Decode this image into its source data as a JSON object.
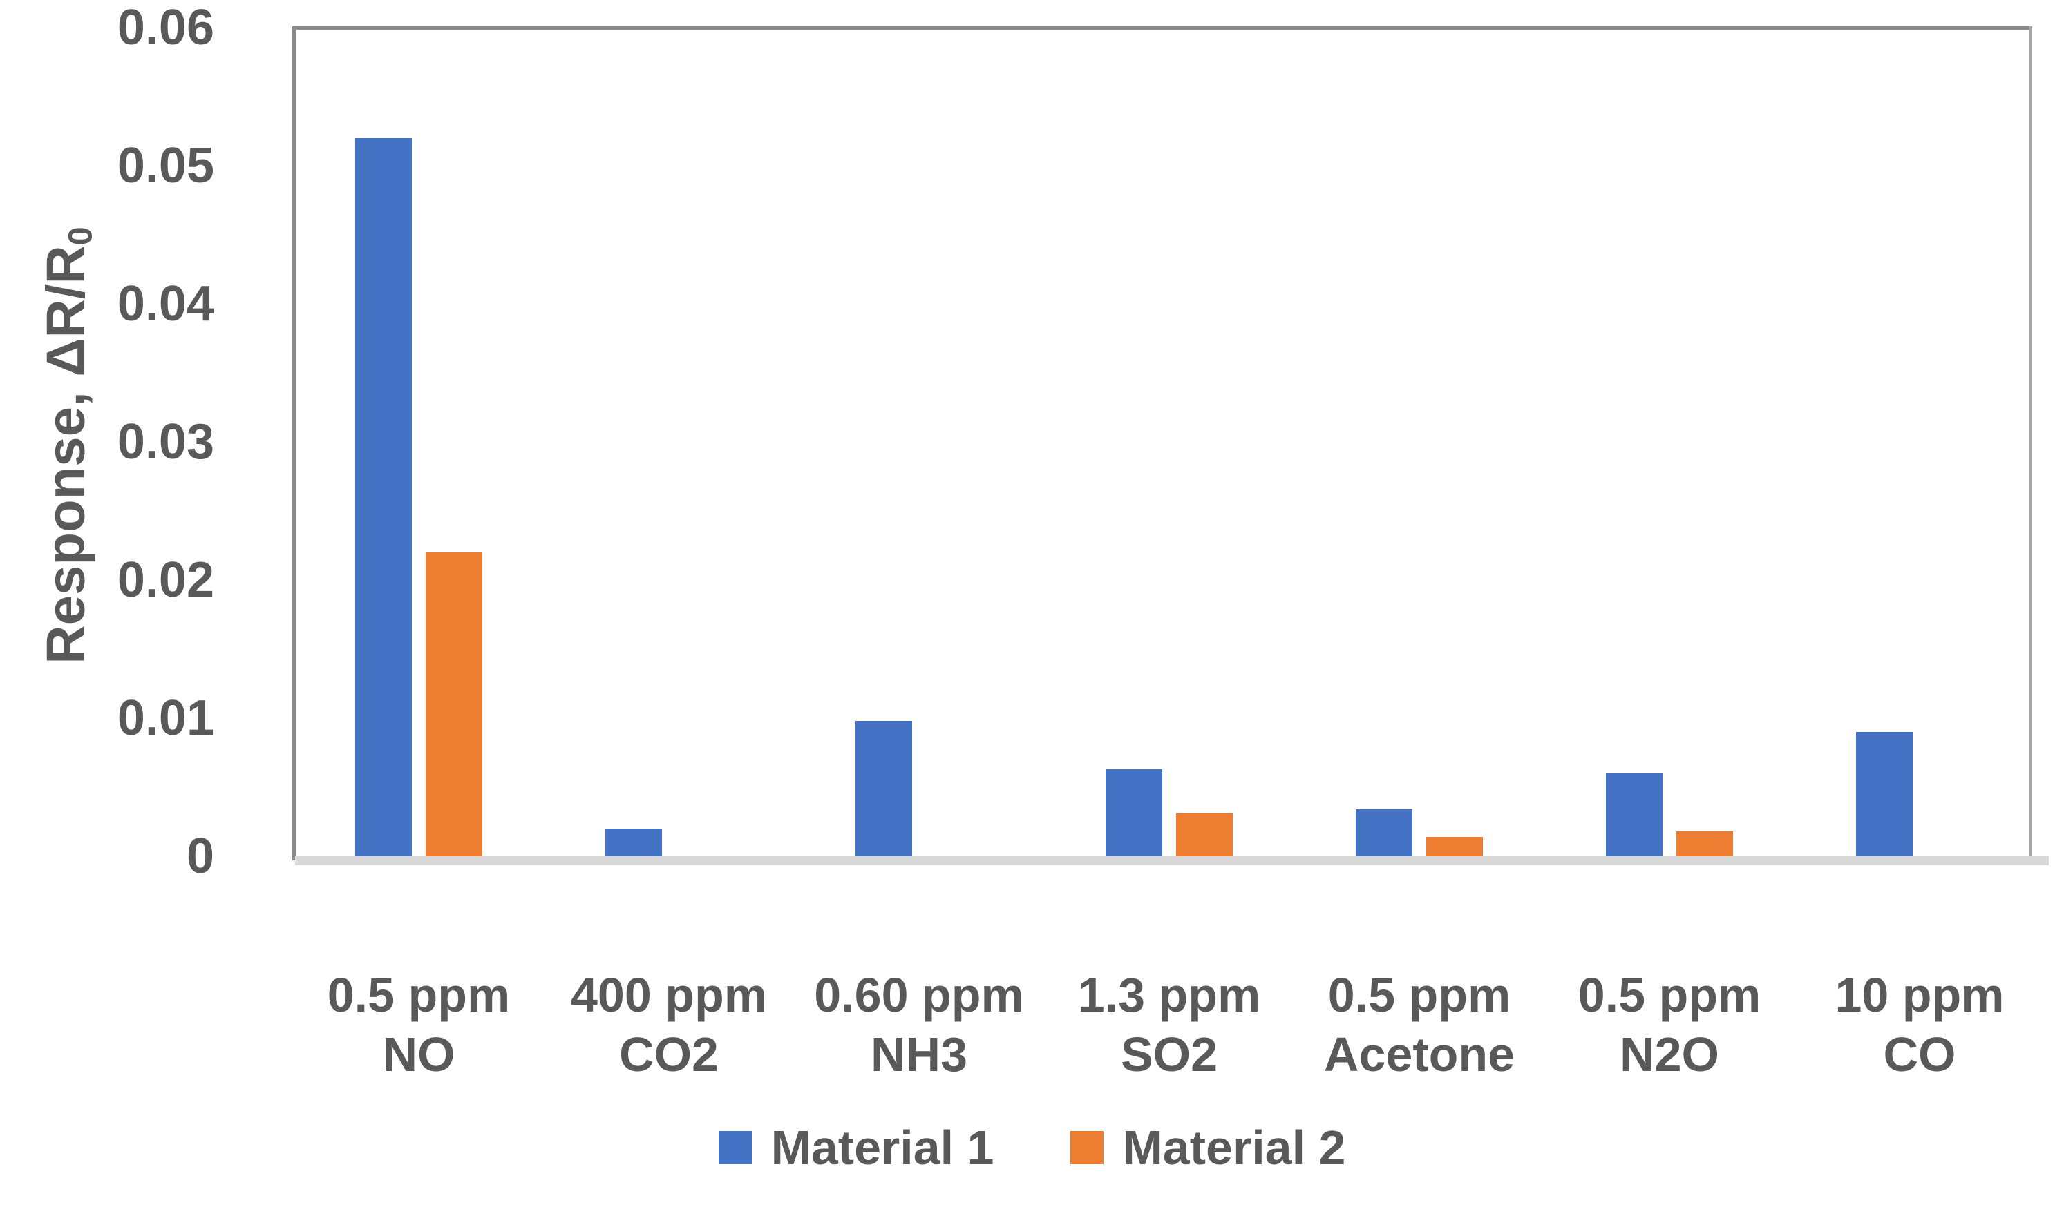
{
  "chart_data": {
    "type": "bar",
    "title": "",
    "categories": [
      {
        "line1": "0.5 ppm",
        "line2": "NO"
      },
      {
        "line1": "400 ppm",
        "line2": "CO2"
      },
      {
        "line1": "0.60 ppm",
        "line2": "NH3"
      },
      {
        "line1": "1.3 ppm",
        "line2": "SO2"
      },
      {
        "line1": "0.5 ppm",
        "line2": "Acetone"
      },
      {
        "line1": "0.5 ppm",
        "line2": "N2O"
      },
      {
        "line1": "10 ppm",
        "line2": "CO"
      }
    ],
    "series": [
      {
        "name": "Material 1",
        "color": "#4472C4",
        "values": [
          0.052,
          0.002,
          0.0098,
          0.0063,
          0.0034,
          0.006,
          0.009
        ]
      },
      {
        "name": "Material 2",
        "color": "#ED7D31",
        "values": [
          0.022,
          0,
          0,
          0.0031,
          0.0014,
          0.0018,
          0
        ]
      }
    ],
    "ylabel": {
      "prefix": "Response, ΔR/R",
      "subscript": "0"
    },
    "yaxis": {
      "min": 0,
      "max": 0.06,
      "tick_labels": [
        "0.06",
        "0.05",
        "0.04",
        "0.03",
        "0.02",
        "0.01",
        "0"
      ],
      "tick_values": [
        0.06,
        0.05,
        0.04,
        0.03,
        0.02,
        0.01,
        0
      ]
    },
    "grid": false,
    "legend_position": "bottom"
  },
  "legend": {
    "items": [
      {
        "label": "Material 1"
      },
      {
        "label": "Material 2"
      }
    ]
  },
  "colors": {
    "material1": "#4472C4",
    "material2": "#ED7D31",
    "text": "#595959",
    "axis_line": "#8A8A8A",
    "baseline": "#D9D9D9",
    "background": "#FFFFFF"
  }
}
